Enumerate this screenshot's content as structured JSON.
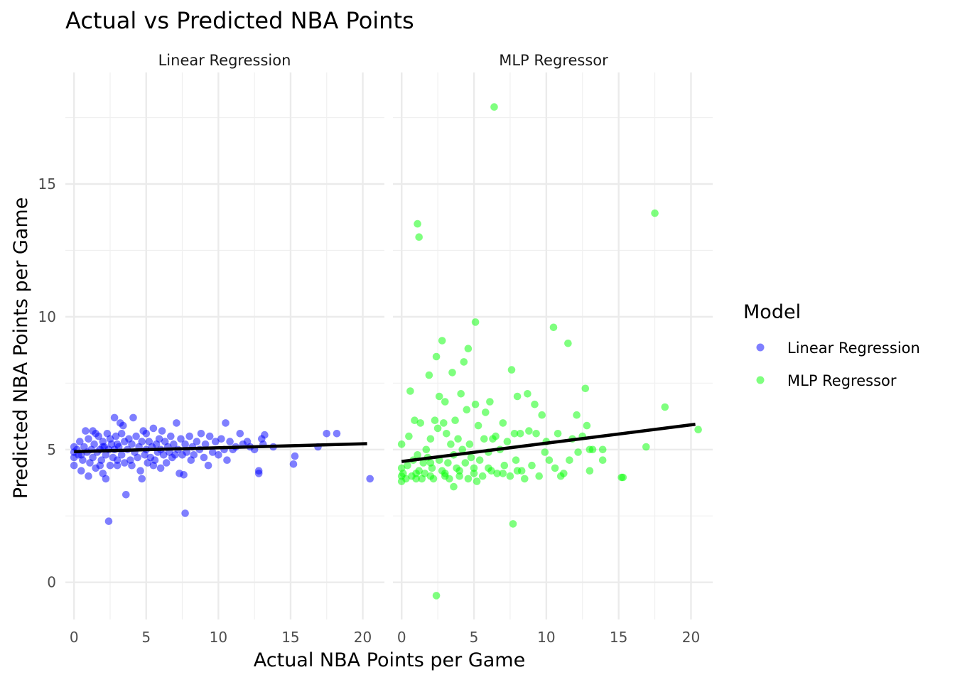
{
  "chart_data": {
    "type": "scatter",
    "title": "Actual vs Predicted NBA Points",
    "xlabel": "Actual NBA Points per Game",
    "ylabel": "Predicted NBA Points per Game",
    "xlim": [
      -0.6,
      21.5
    ],
    "ylim": [
      -1.4,
      19.2
    ],
    "x_ticks": [
      0,
      5,
      10,
      15,
      20
    ],
    "y_ticks": [
      0,
      5,
      10,
      15
    ],
    "grid": true,
    "legend_title": "Model",
    "legend_position": "right",
    "panels": [
      {
        "label": "Linear Regression",
        "color": "#0000FF",
        "trend": [
          [
            0,
            4.92
          ],
          [
            20.3,
            5.22
          ]
        ],
        "points": [
          [
            0,
            5.1
          ],
          [
            0,
            4.9
          ],
          [
            0,
            4.7
          ],
          [
            0,
            4.4
          ],
          [
            0.2,
            5.0
          ],
          [
            0.3,
            4.8
          ],
          [
            0.4,
            5.3
          ],
          [
            0.5,
            4.2
          ],
          [
            0.6,
            4.6
          ],
          [
            0.7,
            5.1
          ],
          [
            0.8,
            5.7
          ],
          [
            0.9,
            4.9
          ],
          [
            1.0,
            4.0
          ],
          [
            1.0,
            5.4
          ],
          [
            1.1,
            4.5
          ],
          [
            1.2,
            5.0
          ],
          [
            1.3,
            5.7
          ],
          [
            1.3,
            4.7
          ],
          [
            1.4,
            5.2
          ],
          [
            1.5,
            4.3
          ],
          [
            1.6,
            4.9
          ],
          [
            1.7,
            5.5
          ],
          [
            1.8,
            5.0
          ],
          [
            1.9,
            4.6
          ],
          [
            2.0,
            5.3
          ],
          [
            2.0,
            4.1
          ],
          [
            2.1,
            5.1
          ],
          [
            2.2,
            4.8
          ],
          [
            2.2,
            3.9
          ],
          [
            2.3,
            5.6
          ],
          [
            2.4,
            5.0
          ],
          [
            2.5,
            4.4
          ],
          [
            2.5,
            5.4
          ],
          [
            2.6,
            5.2
          ],
          [
            2.7,
            4.7
          ],
          [
            2.8,
            6.2
          ],
          [
            2.8,
            5.0
          ],
          [
            2.9,
            5.5
          ],
          [
            3.0,
            4.6
          ],
          [
            3.0,
            5.2
          ],
          [
            3.1,
            5.1
          ],
          [
            3.2,
            6.0
          ],
          [
            3.3,
            4.8
          ],
          [
            3.3,
            5.6
          ],
          [
            3.4,
            5.9
          ],
          [
            3.5,
            4.5
          ],
          [
            3.5,
            5.3
          ],
          [
            3.6,
            3.3
          ],
          [
            3.7,
            5.0
          ],
          [
            3.8,
            5.4
          ],
          [
            3.9,
            4.6
          ],
          [
            4.0,
            5.2
          ],
          [
            4.1,
            6.2
          ],
          [
            4.2,
            4.9
          ],
          [
            4.3,
            5.5
          ],
          [
            4.4,
            4.7
          ],
          [
            4.5,
            5.1
          ],
          [
            4.6,
            4.2
          ],
          [
            4.7,
            5.3
          ],
          [
            4.7,
            3.9
          ],
          [
            4.8,
            5.7
          ],
          [
            4.9,
            4.8
          ],
          [
            5.0,
            5.0
          ],
          [
            5.0,
            5.6
          ],
          [
            5.1,
            4.5
          ],
          [
            5.2,
            5.3
          ],
          [
            5.3,
            4.7
          ],
          [
            5.4,
            5.1
          ],
          [
            5.5,
            5.8
          ],
          [
            5.6,
            4.6
          ],
          [
            5.7,
            5.2
          ],
          [
            5.8,
            4.9
          ],
          [
            5.9,
            5.4
          ],
          [
            6.0,
            4.3
          ],
          [
            6.0,
            5.0
          ],
          [
            6.1,
            5.7
          ],
          [
            6.2,
            4.8
          ],
          [
            6.3,
            5.3
          ],
          [
            6.4,
            4.5
          ],
          [
            6.5,
            5.1
          ],
          [
            6.6,
            4.9
          ],
          [
            6.7,
            5.5
          ],
          [
            6.8,
            4.7
          ],
          [
            6.9,
            5.2
          ],
          [
            7.0,
            4.8
          ],
          [
            7.1,
            6.0
          ],
          [
            7.2,
            5.0
          ],
          [
            7.3,
            4.1
          ],
          [
            7.4,
            5.4
          ],
          [
            7.5,
            4.8
          ],
          [
            7.6,
            4.05
          ],
          [
            7.7,
            2.6
          ],
          [
            7.7,
            5.2
          ],
          [
            7.8,
            4.9
          ],
          [
            8.0,
            5.5
          ],
          [
            8.1,
            4.6
          ],
          [
            8.2,
            5.1
          ],
          [
            8.3,
            4.8
          ],
          [
            8.5,
            5.3
          ],
          [
            8.7,
            5.0
          ],
          [
            8.8,
            5.6
          ],
          [
            9.0,
            4.7
          ],
          [
            9.1,
            5.2
          ],
          [
            9.3,
            4.4
          ],
          [
            9.4,
            5.5
          ],
          [
            9.6,
            4.9
          ],
          [
            9.8,
            5.3
          ],
          [
            10.0,
            4.8
          ],
          [
            10.2,
            5.4
          ],
          [
            10.4,
            5.0
          ],
          [
            10.5,
            6.0
          ],
          [
            10.6,
            4.6
          ],
          [
            10.8,
            5.3
          ],
          [
            11.0,
            5.0
          ],
          [
            11.2,
            5.1
          ],
          [
            11.5,
            5.6
          ],
          [
            11.7,
            5.2
          ],
          [
            12.0,
            5.3
          ],
          [
            12.2,
            5.1
          ],
          [
            12.5,
            5.0
          ],
          [
            12.8,
            4.2
          ],
          [
            12.8,
            4.1
          ],
          [
            13.0,
            5.4
          ],
          [
            13.1,
            5.2
          ],
          [
            13.2,
            5.55
          ],
          [
            13.8,
            5.1
          ],
          [
            15.2,
            4.45
          ],
          [
            15.3,
            4.75
          ],
          [
            16.9,
            5.1
          ],
          [
            17.5,
            5.6
          ],
          [
            18.2,
            5.6
          ],
          [
            20.5,
            3.9
          ],
          [
            2.4,
            2.3
          ],
          [
            1.5,
            5.6
          ],
          [
            2.0,
            5.1
          ],
          [
            0.5,
            4.8
          ],
          [
            1.8,
            4.4
          ],
          [
            3.0,
            4.4
          ],
          [
            4.0,
            4.4
          ],
          [
            5.5,
            4.4
          ]
        ]
      },
      {
        "label": "MLP Regressor",
        "color": "#00FF00",
        "trend": [
          [
            0,
            4.55
          ],
          [
            20.3,
            5.95
          ]
        ],
        "points": [
          [
            0,
            5.2
          ],
          [
            0,
            4.3
          ],
          [
            0,
            4.0
          ],
          [
            0,
            3.8
          ],
          [
            0.1,
            4.1
          ],
          [
            0.3,
            3.9
          ],
          [
            0.4,
            4.4
          ],
          [
            0.5,
            5.5
          ],
          [
            0.6,
            7.2
          ],
          [
            0.7,
            4.0
          ],
          [
            0.8,
            4.6
          ],
          [
            0.9,
            6.1
          ],
          [
            1.0,
            3.9
          ],
          [
            1.1,
            13.5
          ],
          [
            1.1,
            4.8
          ],
          [
            1.2,
            13.0
          ],
          [
            1.2,
            4.2
          ],
          [
            1.3,
            6.0
          ],
          [
            1.4,
            3.9
          ],
          [
            1.5,
            4.5
          ],
          [
            1.6,
            4.1
          ],
          [
            1.7,
            5.0
          ],
          [
            1.8,
            4.7
          ],
          [
            1.9,
            7.8
          ],
          [
            2.0,
            5.4
          ],
          [
            2.0,
            4.0
          ],
          [
            2.1,
            4.3
          ],
          [
            2.2,
            3.9
          ],
          [
            2.3,
            6.1
          ],
          [
            2.4,
            8.5
          ],
          [
            2.4,
            -0.5
          ],
          [
            2.5,
            5.8
          ],
          [
            2.6,
            4.6
          ],
          [
            2.6,
            7.0
          ],
          [
            2.8,
            9.1
          ],
          [
            2.8,
            4.2
          ],
          [
            2.9,
            6.0
          ],
          [
            3.0,
            6.8
          ],
          [
            3.0,
            4.0
          ],
          [
            3.1,
            5.6
          ],
          [
            3.2,
            4.5
          ],
          [
            3.3,
            3.9
          ],
          [
            3.4,
            5.2
          ],
          [
            3.5,
            7.9
          ],
          [
            3.6,
            4.8
          ],
          [
            3.6,
            3.6
          ],
          [
            3.7,
            6.1
          ],
          [
            3.8,
            4.3
          ],
          [
            3.9,
            5.4
          ],
          [
            4.0,
            4.0
          ],
          [
            4.1,
            7.1
          ],
          [
            4.2,
            5.0
          ],
          [
            4.3,
            8.3
          ],
          [
            4.4,
            4.5
          ],
          [
            4.5,
            6.5
          ],
          [
            4.6,
            8.8
          ],
          [
            4.6,
            3.9
          ],
          [
            4.7,
            5.2
          ],
          [
            4.8,
            4.7
          ],
          [
            5.0,
            4.3
          ],
          [
            5.1,
            6.7
          ],
          [
            5.1,
            9.8
          ],
          [
            5.2,
            3.8
          ],
          [
            5.3,
            5.9
          ],
          [
            5.4,
            4.6
          ],
          [
            5.6,
            4.0
          ],
          [
            5.7,
            5.4
          ],
          [
            5.8,
            6.4
          ],
          [
            6.0,
            4.9
          ],
          [
            6.1,
            6.8
          ],
          [
            6.2,
            4.2
          ],
          [
            6.3,
            5.4
          ],
          [
            6.4,
            17.9
          ],
          [
            6.5,
            5.5
          ],
          [
            6.6,
            4.1
          ],
          [
            6.8,
            5.0
          ],
          [
            7.0,
            6.0
          ],
          [
            7.1,
            4.4
          ],
          [
            7.3,
            5.3
          ],
          [
            7.5,
            4.0
          ],
          [
            7.6,
            8.0
          ],
          [
            7.7,
            2.2
          ],
          [
            7.8,
            5.6
          ],
          [
            7.9,
            4.6
          ],
          [
            8.0,
            7.0
          ],
          [
            8.2,
            5.6
          ],
          [
            8.3,
            4.2
          ],
          [
            8.5,
            3.9
          ],
          [
            8.7,
            7.1
          ],
          [
            8.8,
            5.7
          ],
          [
            9.0,
            4.4
          ],
          [
            9.2,
            6.7
          ],
          [
            9.3,
            5.6
          ],
          [
            9.5,
            4.0
          ],
          [
            9.7,
            6.3
          ],
          [
            9.9,
            4.9
          ],
          [
            10.0,
            5.3
          ],
          [
            10.2,
            4.6
          ],
          [
            10.5,
            9.6
          ],
          [
            10.6,
            4.3
          ],
          [
            10.8,
            5.6
          ],
          [
            11.0,
            4.0
          ],
          [
            11.2,
            4.1
          ],
          [
            11.5,
            9.0
          ],
          [
            11.6,
            4.6
          ],
          [
            11.8,
            5.4
          ],
          [
            12.1,
            6.3
          ],
          [
            12.2,
            4.9
          ],
          [
            12.5,
            5.5
          ],
          [
            12.7,
            7.3
          ],
          [
            12.8,
            5.9
          ],
          [
            13.0,
            4.2
          ],
          [
            13.0,
            5.0
          ],
          [
            13.2,
            5.0
          ],
          [
            13.9,
            4.6
          ],
          [
            13.9,
            5.0
          ],
          [
            15.2,
            3.95
          ],
          [
            15.3,
            3.95
          ],
          [
            16.9,
            5.1
          ],
          [
            17.5,
            13.9
          ],
          [
            18.2,
            6.6
          ],
          [
            20.5,
            5.75
          ],
          [
            1.0,
            4.1
          ],
          [
            2.0,
            4.5
          ],
          [
            3.0,
            4.1
          ],
          [
            4.0,
            4.2
          ],
          [
            5.0,
            4.1
          ],
          [
            6.0,
            4.3
          ],
          [
            7.0,
            4.1
          ],
          [
            8.0,
            4.2
          ]
        ]
      }
    ]
  }
}
